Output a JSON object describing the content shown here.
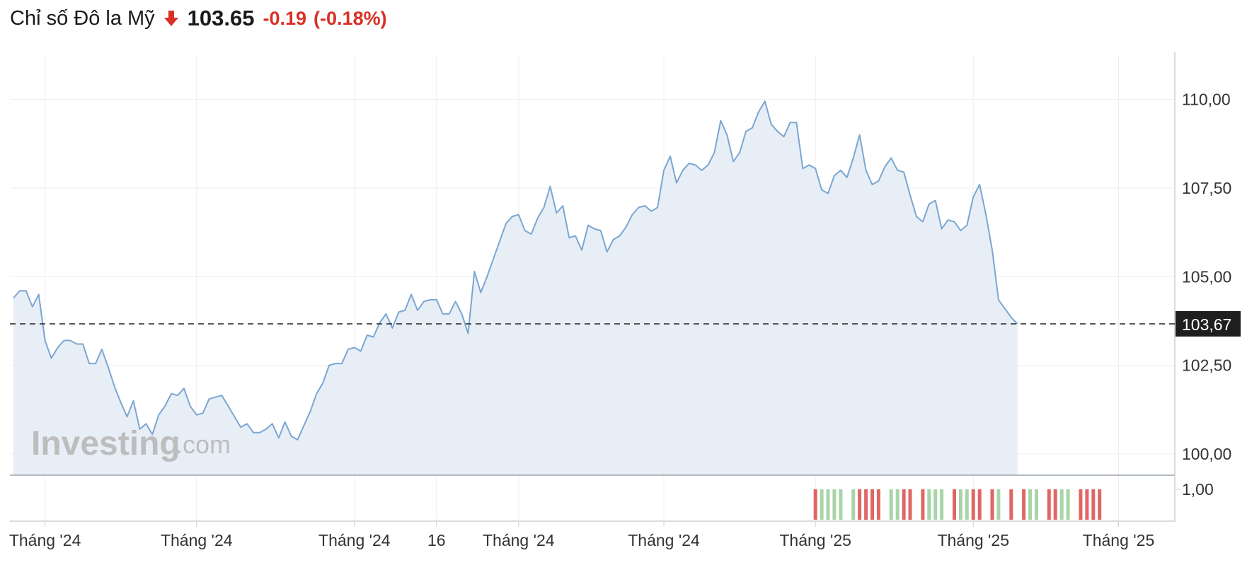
{
  "header": {
    "title": "Chỉ số Đô la Mỹ",
    "price": "103.65",
    "change": "-0.19",
    "change_pct": "(-0.18%)",
    "direction_icon": "arrow-down-icon"
  },
  "colors": {
    "down": "#d93025",
    "line": "#7aa6d3",
    "area": "#e8eef6",
    "vol_down": "#e06666",
    "vol_up": "#a8d5a8"
  },
  "watermark": {
    "brand": "Investing",
    "suffix": ".com"
  },
  "chart_data": {
    "type": "area",
    "y_ticks": [
      {
        "value": 110.0,
        "label": "110,00"
      },
      {
        "value": 107.5,
        "label": "107,50"
      },
      {
        "value": 105.0,
        "label": "105,00"
      },
      {
        "value": 102.5,
        "label": "102,50"
      },
      {
        "value": 100.0,
        "label": "100,00"
      }
    ],
    "ylim": [
      99.4,
      111.25
    ],
    "xlim": [
      0,
      181
    ],
    "x_ticks": [
      {
        "x": 5,
        "label": "Tháng '24"
      },
      {
        "x": 29,
        "label": "Tháng '24"
      },
      {
        "x": 54,
        "label": "Tháng '24"
      },
      {
        "x": 67,
        "label": "16"
      },
      {
        "x": 80,
        "label": "Tháng '24"
      },
      {
        "x": 103,
        "label": "Tháng '24"
      },
      {
        "x": 127,
        "label": "Tháng '25"
      },
      {
        "x": 152,
        "label": "Tháng '25"
      },
      {
        "x": 175,
        "label": "Tháng '25"
      }
    ],
    "last_value": 103.67,
    "last_label": "103,67",
    "volume_axis_label": "1,00",
    "grid": true,
    "values": [
      104.4,
      104.6,
      104.6,
      104.15,
      104.5,
      103.2,
      102.7,
      103.0,
      103.2,
      103.2,
      103.1,
      103.1,
      102.55,
      102.55,
      102.95,
      102.45,
      101.9,
      101.45,
      101.05,
      101.5,
      100.7,
      100.85,
      100.55,
      101.1,
      101.35,
      101.7,
      101.65,
      101.85,
      101.35,
      101.1,
      101.15,
      101.55,
      101.6,
      101.65,
      101.35,
      101.05,
      100.75,
      100.85,
      100.6,
      100.6,
      100.7,
      100.85,
      100.45,
      100.9,
      100.5,
      100.4,
      100.8,
      101.2,
      101.7,
      102.0,
      102.5,
      102.55,
      102.55,
      102.95,
      103.0,
      102.9,
      103.35,
      103.3,
      103.7,
      103.95,
      103.55,
      104.0,
      104.05,
      104.5,
      104.05,
      104.3,
      104.35,
      104.35,
      103.95,
      103.95,
      104.3,
      103.95,
      103.4,
      105.15,
      104.55,
      105.0,
      105.5,
      106.0,
      106.5,
      106.7,
      106.75,
      106.3,
      106.2,
      106.65,
      106.95,
      107.55,
      106.8,
      107.0,
      106.1,
      106.15,
      105.75,
      106.45,
      106.35,
      106.3,
      105.7,
      106.05,
      106.15,
      106.4,
      106.75,
      106.95,
      107.0,
      106.85,
      106.95,
      108.0,
      108.4,
      107.65,
      108.0,
      108.2,
      108.15,
      108.0,
      108.15,
      108.5,
      109.4,
      109.0,
      108.25,
      108.5,
      109.1,
      109.2,
      109.65,
      109.95,
      109.3,
      109.1,
      108.95,
      109.35,
      109.35,
      108.05,
      108.15,
      108.05,
      107.45,
      107.35,
      107.85,
      108.0,
      107.8,
      108.35,
      109.0,
      108.0,
      107.6,
      107.7,
      108.1,
      108.35,
      108.0,
      107.95,
      107.3,
      106.7,
      106.55,
      107.05,
      107.15,
      106.35,
      106.6,
      106.55,
      106.3,
      106.45,
      107.25,
      107.6,
      106.75,
      105.75,
      104.35,
      104.1,
      103.85,
      103.67
    ],
    "volume": {
      "slots": [
        127,
        128,
        129,
        130,
        131,
        133,
        134,
        135,
        136,
        137,
        139,
        140,
        141,
        142,
        144,
        145,
        146,
        147,
        149,
        150,
        151,
        152,
        153,
        155,
        156,
        158,
        160,
        161,
        162,
        164,
        165,
        166,
        167,
        169,
        170,
        171,
        172
      ],
      "colors": [
        "d",
        "u",
        "u",
        "u",
        "u",
        "u",
        "d",
        "d",
        "d",
        "d",
        "u",
        "u",
        "d",
        "d",
        "d",
        "u",
        "u",
        "u",
        "d",
        "u",
        "u",
        "d",
        "d",
        "d",
        "u",
        "d",
        "d",
        "u",
        "u",
        "d",
        "d",
        "u",
        "u",
        "d",
        "d",
        "d",
        "d"
      ]
    }
  }
}
